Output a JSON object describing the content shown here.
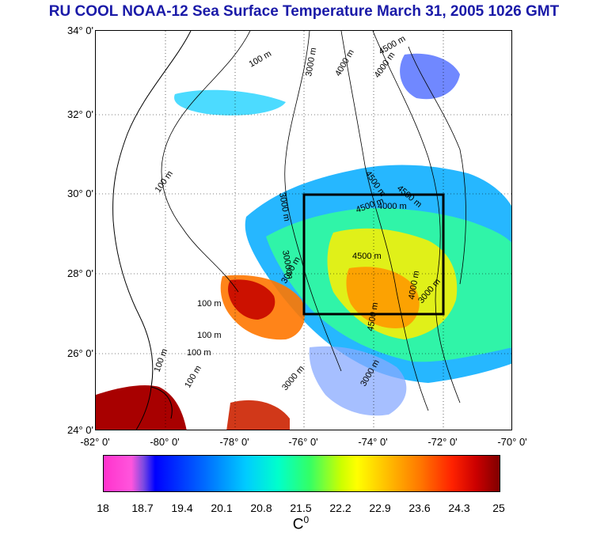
{
  "title": "RU COOL  NOAA-12 Sea Surface Temperature March 31, 2005 1026 GMT",
  "map": {
    "lat_labels": [
      "34° 0'",
      "32° 0'",
      "30° 0'",
      "28° 0'",
      "26° 0'",
      "24° 0'"
    ],
    "lon_labels": [
      "-82° 0'",
      "-80° 0'",
      "-78° 0'",
      "-76° 0'",
      "-74° 0'",
      "-72° 0'",
      "-70° 0'"
    ],
    "contour_labels": [
      "100 m",
      "100 m",
      "100 m",
      "100 m",
      "100 m",
      "100 m",
      "100 m",
      "3000 m",
      "3000 m",
      "3000 m",
      "3000 m",
      "4000 m",
      "4000 m",
      "4500 m",
      "4500 m",
      "4500 m",
      "4500 m",
      "4000 m",
      "4500 m",
      "4500 m",
      "4000 m",
      "3000 m",
      "3000 m",
      "3000 m"
    ],
    "study_box": {
      "lon_min": -76,
      "lon_max": -72,
      "lat_min": 27,
      "lat_max": 30
    }
  },
  "colorbar": {
    "ticks": [
      "18",
      "18.7",
      "19.4",
      "20.1",
      "20.8",
      "21.5",
      "22.2",
      "22.9",
      "23.6",
      "24.3",
      "25"
    ],
    "unit_base": "C",
    "unit_sup": "0"
  },
  "colors": {
    "title": "#1a1aa8",
    "box": "#000000"
  }
}
